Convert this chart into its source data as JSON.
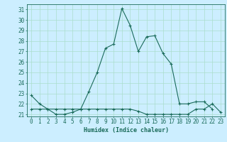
{
  "title": "",
  "xlabel": "Humidex (Indice chaleur)",
  "ylabel": "",
  "background_color": "#cceeff",
  "line_color": "#1a6b5a",
  "grid_color": "#aaddcc",
  "x": [
    0,
    1,
    2,
    3,
    4,
    5,
    6,
    7,
    8,
    9,
    10,
    11,
    12,
    13,
    14,
    15,
    16,
    17,
    18,
    19,
    20,
    21,
    22,
    23
  ],
  "y_main": [
    22.8,
    22.0,
    21.5,
    21.0,
    21.0,
    21.2,
    21.5,
    23.2,
    25.0,
    27.3,
    27.7,
    31.1,
    29.5,
    27.0,
    28.4,
    28.5,
    26.8,
    25.8,
    22.0,
    22.0,
    22.2,
    22.2,
    21.5,
    null
  ],
  "y_flat": [
    21.5,
    21.5,
    21.5,
    21.5,
    21.5,
    21.5,
    21.5,
    21.5,
    21.5,
    21.5,
    21.5,
    21.5,
    21.5,
    21.3,
    21.0,
    21.0,
    21.0,
    21.0,
    21.0,
    21.0,
    21.5,
    21.5,
    22.0,
    21.2
  ],
  "ylim": [
    20.8,
    31.5
  ],
  "xlim": [
    -0.5,
    23.5
  ],
  "yticks": [
    21,
    22,
    23,
    24,
    25,
    26,
    27,
    28,
    29,
    30,
    31
  ],
  "xticks": [
    0,
    1,
    2,
    3,
    4,
    5,
    6,
    7,
    8,
    9,
    10,
    11,
    12,
    13,
    14,
    15,
    16,
    17,
    18,
    19,
    20,
    21,
    22,
    23
  ]
}
